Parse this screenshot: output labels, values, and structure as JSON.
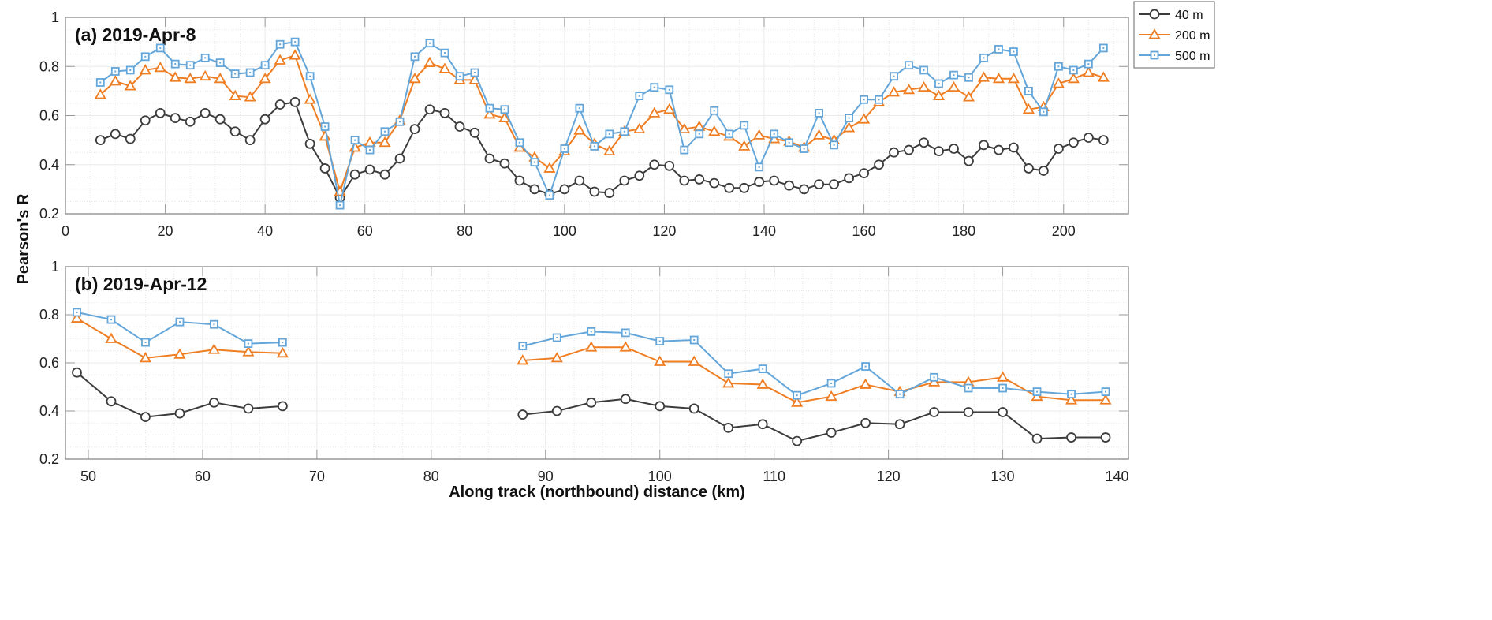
{
  "chart_data": [
    {
      "type": "line",
      "title": "(a) 2019-Apr-8",
      "xlim": [
        0,
        213
      ],
      "ylim": [
        0.2,
        1
      ],
      "xticks": [
        0,
        20,
        40,
        60,
        80,
        100,
        120,
        140,
        160,
        180,
        200
      ],
      "yticks": [
        0.2,
        0.4,
        0.6,
        0.8,
        1
      ],
      "ytick_labels": [
        "0.2",
        "0.4",
        "0.6",
        "0.8",
        "1"
      ],
      "grid": true,
      "x": [
        7,
        10,
        13,
        16,
        19,
        22,
        25,
        28,
        31,
        34,
        37,
        40,
        43,
        46,
        49,
        52,
        55,
        58,
        61,
        64,
        67,
        70,
        73,
        76,
        79,
        82,
        85,
        88,
        91,
        94,
        97,
        100,
        103,
        106,
        109,
        112,
        115,
        118,
        121,
        124,
        127,
        130,
        133,
        136,
        139,
        142,
        145,
        148,
        151,
        154,
        157,
        160,
        163,
        166,
        169,
        172,
        175,
        178,
        181,
        184,
        187,
        190,
        193,
        196,
        199,
        202,
        205,
        208
      ],
      "series": [
        {
          "name": "40 m",
          "marker": "circle",
          "color": "#3c3c3c",
          "values": [
            0.5,
            0.525,
            0.505,
            0.58,
            0.61,
            0.59,
            0.575,
            0.61,
            0.585,
            0.535,
            0.5,
            0.585,
            0.645,
            0.655,
            0.485,
            0.385,
            0.265,
            0.36,
            0.38,
            0.36,
            0.425,
            0.545,
            0.625,
            0.61,
            0.555,
            0.53,
            0.425,
            0.405,
            0.335,
            0.3,
            0.28,
            0.3,
            0.335,
            0.29,
            0.285,
            0.335,
            0.355,
            0.4,
            0.395,
            0.335,
            0.34,
            0.325,
            0.305,
            0.305,
            0.33,
            0.335,
            0.315,
            0.3,
            0.32,
            0.32,
            0.345,
            0.365,
            0.4,
            0.45,
            0.46,
            0.49,
            0.455,
            0.465,
            0.415,
            0.48,
            0.46,
            0.47,
            0.385,
            0.375,
            0.465,
            0.49,
            0.51,
            0.5
          ]
        },
        {
          "name": "200 m",
          "marker": "triangle",
          "color": "#ef7d22",
          "values": [
            0.685,
            0.74,
            0.72,
            0.785,
            0.795,
            0.755,
            0.75,
            0.76,
            0.75,
            0.68,
            0.675,
            0.75,
            0.825,
            0.845,
            0.665,
            0.515,
            0.29,
            0.47,
            0.49,
            0.49,
            0.58,
            0.75,
            0.815,
            0.79,
            0.745,
            0.745,
            0.605,
            0.59,
            0.47,
            0.43,
            0.385,
            0.455,
            0.54,
            0.485,
            0.455,
            0.535,
            0.545,
            0.61,
            0.625,
            0.545,
            0.555,
            0.535,
            0.515,
            0.475,
            0.52,
            0.505,
            0.495,
            0.47,
            0.52,
            0.5,
            0.55,
            0.585,
            0.655,
            0.695,
            0.705,
            0.715,
            0.68,
            0.715,
            0.675,
            0.755,
            0.75,
            0.75,
            0.625,
            0.635,
            0.73,
            0.75,
            0.775,
            0.755
          ]
        },
        {
          "name": "500 m",
          "marker": "square",
          "color": "#64a6d9",
          "values": [
            0.735,
            0.78,
            0.785,
            0.84,
            0.875,
            0.81,
            0.805,
            0.835,
            0.815,
            0.77,
            0.775,
            0.805,
            0.89,
            0.9,
            0.76,
            0.555,
            0.235,
            0.5,
            0.46,
            0.535,
            0.575,
            0.84,
            0.895,
            0.855,
            0.76,
            0.775,
            0.63,
            0.625,
            0.49,
            0.41,
            0.275,
            0.465,
            0.63,
            0.475,
            0.525,
            0.535,
            0.68,
            0.715,
            0.705,
            0.46,
            0.525,
            0.62,
            0.525,
            0.56,
            0.39,
            0.525,
            0.49,
            0.465,
            0.61,
            0.48,
            0.59,
            0.665,
            0.665,
            0.76,
            0.805,
            0.785,
            0.73,
            0.765,
            0.755,
            0.835,
            0.87,
            0.86,
            0.7,
            0.615,
            0.8,
            0.785,
            0.81,
            0.875
          ]
        }
      ]
    },
    {
      "type": "line",
      "title": "(b) 2019-Apr-12",
      "xlim": [
        48,
        141
      ],
      "ylim": [
        0.2,
        1
      ],
      "xticks": [
        50,
        60,
        70,
        80,
        90,
        100,
        110,
        120,
        130,
        140
      ],
      "yticks": [
        0.2,
        0.4,
        0.6,
        0.8,
        1
      ],
      "ytick_labels": [
        "0.2",
        "0.4",
        "0.6",
        "0.8",
        "1"
      ],
      "grid": true,
      "x": [
        49,
        52,
        55,
        58,
        61,
        64,
        67,
        88,
        91,
        94,
        97,
        100,
        103,
        106,
        109,
        112,
        115,
        118,
        121,
        124,
        127,
        130,
        133,
        136,
        139
      ],
      "segment_breaks_after_index": [
        6
      ],
      "series": [
        {
          "name": "40 m",
          "marker": "circle",
          "color": "#3c3c3c",
          "values": [
            0.56,
            0.44,
            0.375,
            0.39,
            0.435,
            0.41,
            0.42,
            0.385,
            0.4,
            0.435,
            0.45,
            0.42,
            0.41,
            0.33,
            0.345,
            0.275,
            0.31,
            0.35,
            0.345,
            0.395,
            0.395,
            0.395,
            0.285,
            0.29,
            0.29
          ]
        },
        {
          "name": "200 m",
          "marker": "triangle",
          "color": "#ef7d22",
          "values": [
            0.785,
            0.7,
            0.62,
            0.635,
            0.655,
            0.645,
            0.64,
            0.61,
            0.62,
            0.665,
            0.665,
            0.605,
            0.605,
            0.515,
            0.51,
            0.435,
            0.46,
            0.51,
            0.48,
            0.52,
            0.52,
            0.54,
            0.46,
            0.445,
            0.445
          ]
        },
        {
          "name": "500 m",
          "marker": "square",
          "color": "#64a6d9",
          "values": [
            0.81,
            0.78,
            0.685,
            0.77,
            0.76,
            0.68,
            0.685,
            0.67,
            0.705,
            0.73,
            0.725,
            0.69,
            0.695,
            0.555,
            0.575,
            0.465,
            0.515,
            0.585,
            0.47,
            0.54,
            0.495,
            0.495,
            0.48,
            0.47,
            0.48
          ]
        }
      ]
    }
  ],
  "ylabel": "Pearson's R",
  "xlabel": "Along track (northbound) distance (km)",
  "legend": {
    "placement": "top-right",
    "entries": [
      "40 m",
      "200 m",
      "500 m"
    ]
  }
}
